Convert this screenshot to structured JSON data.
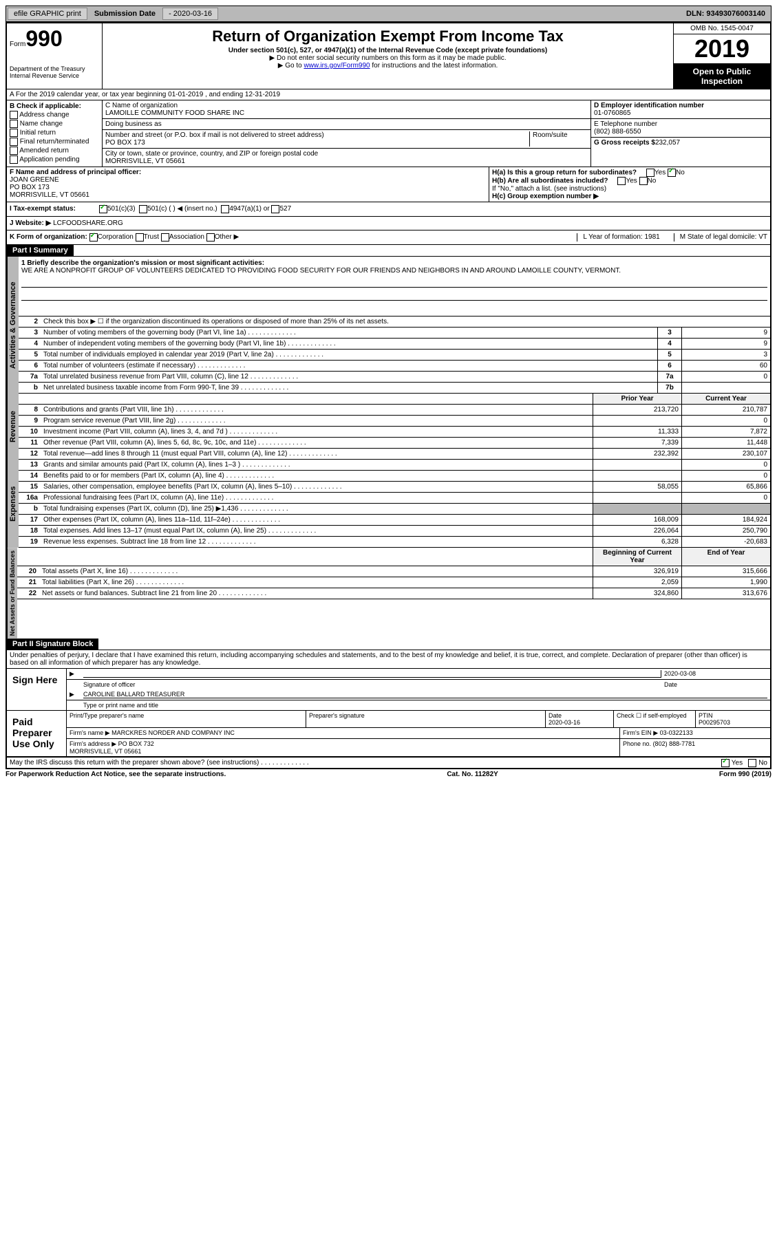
{
  "topbar": {
    "efile": "efile GRAPHIC print",
    "sub_label": "Submission Date",
    "sub_date": "- 2020-03-16",
    "dln": "DLN: 93493076003140"
  },
  "header": {
    "form_prefix": "Form",
    "form_num": "990",
    "dept": "Department of the Treasury",
    "irs": "Internal Revenue Service",
    "title": "Return of Organization Exempt From Income Tax",
    "subtitle": "Under section 501(c), 527, or 4947(a)(1) of the Internal Revenue Code (except private foundations)",
    "note1": "▶ Do not enter social security numbers on this form as it may be made public.",
    "note2_pre": "▶ Go to ",
    "note2_link": "www.irs.gov/Form990",
    "note2_post": " for instructions and the latest information.",
    "omb": "OMB No. 1545-0047",
    "year": "2019",
    "open": "Open to Public Inspection"
  },
  "row_a": "A For the 2019 calendar year, or tax year beginning 01-01-2019   , and ending 12-31-2019",
  "col_b": {
    "title": "B Check if applicable:",
    "i1": "Address change",
    "i2": "Name change",
    "i3": "Initial return",
    "i4": "Final return/terminated",
    "i5": "Amended return",
    "i6": "Application pending"
  },
  "col_c": {
    "name_label": "C Name of organization",
    "name": "LAMOILLE COMMUNITY FOOD SHARE INC",
    "dba": "Doing business as",
    "addr_label": "Number and street (or P.O. box if mail is not delivered to street address)",
    "addr": "PO BOX 173",
    "room_label": "Room/suite",
    "city_label": "City or town, state or province, country, and ZIP or foreign postal code",
    "city": "MORRISVILLE, VT  05661"
  },
  "col_d": {
    "ein_label": "D Employer identification number",
    "ein": "01-0760865",
    "phone_label": "E Telephone number",
    "phone": "(802) 888-6550",
    "gross_label": "G Gross receipts $",
    "gross": "232,057"
  },
  "row_f": {
    "label": "F  Name and address of principal officer:",
    "name": "JOAN GREENE",
    "addr1": "PO BOX 173",
    "addr2": "MORRISVILLE, VT  05661",
    "ha": "H(a)  Is this a group return for subordinates?",
    "hb": "H(b)  Are all subordinates included?",
    "hb_note": "If \"No,\" attach a list. (see instructions)",
    "hc": "H(c)  Group exemption number ▶",
    "yes": "Yes",
    "no": "No"
  },
  "row_i": {
    "label": "I  Tax-exempt status:",
    "o1": "501(c)(3)",
    "o2": "501(c) (  ) ◀ (insert no.)",
    "o3": "4947(a)(1) or",
    "o4": "527"
  },
  "row_j": {
    "label": "J  Website: ▶",
    "val": "LCFOODSHARE.ORG"
  },
  "row_k": {
    "label": "K Form of organization:",
    "o1": "Corporation",
    "o2": "Trust",
    "o3": "Association",
    "o4": "Other ▶",
    "l": "L Year of formation: 1981",
    "m": "M State of legal domicile: VT"
  },
  "part1": {
    "header": "Part I     Summary",
    "l1_label": "1  Briefly describe the organization's mission or most significant activities:",
    "l1_text": "WE ARE A NONPROFIT GROUP OF VOLUNTEERS DEDICATED TO PROVIDING FOOD SECURITY FOR OUR FRIENDS AND NEIGHBORS IN AND AROUND LAMOILLE COUNTY, VERMONT.",
    "l2": "Check this box ▶ ☐  if the organization discontinued its operations or disposed of more than 25% of its net assets.",
    "prior_hdr": "Prior Year",
    "curr_hdr": "Current Year",
    "begin_hdr": "Beginning of Current Year",
    "end_hdr": "End of Year",
    "lines_gov": [
      {
        "n": "3",
        "d": "Number of voting members of the governing body (Part VI, line 1a)",
        "b": "3",
        "v": "9"
      },
      {
        "n": "4",
        "d": "Number of independent voting members of the governing body (Part VI, line 1b)",
        "b": "4",
        "v": "9"
      },
      {
        "n": "5",
        "d": "Total number of individuals employed in calendar year 2019 (Part V, line 2a)",
        "b": "5",
        "v": "3"
      },
      {
        "n": "6",
        "d": "Total number of volunteers (estimate if necessary)",
        "b": "6",
        "v": "60"
      },
      {
        "n": "7a",
        "d": "Total unrelated business revenue from Part VIII, column (C), line 12",
        "b": "7a",
        "v": "0"
      },
      {
        "n": "b",
        "d": "Net unrelated business taxable income from Form 990-T, line 39",
        "b": "7b",
        "v": ""
      }
    ],
    "lines_rev": [
      {
        "n": "8",
        "d": "Contributions and grants (Part VIII, line 1h)",
        "p": "213,720",
        "c": "210,787"
      },
      {
        "n": "9",
        "d": "Program service revenue (Part VIII, line 2g)",
        "p": "",
        "c": "0"
      },
      {
        "n": "10",
        "d": "Investment income (Part VIII, column (A), lines 3, 4, and 7d )",
        "p": "11,333",
        "c": "7,872"
      },
      {
        "n": "11",
        "d": "Other revenue (Part VIII, column (A), lines 5, 6d, 8c, 9c, 10c, and 11e)",
        "p": "7,339",
        "c": "11,448"
      },
      {
        "n": "12",
        "d": "Total revenue—add lines 8 through 11 (must equal Part VIII, column (A), line 12)",
        "p": "232,392",
        "c": "230,107"
      }
    ],
    "lines_exp": [
      {
        "n": "13",
        "d": "Grants and similar amounts paid (Part IX, column (A), lines 1–3 )",
        "p": "",
        "c": "0"
      },
      {
        "n": "14",
        "d": "Benefits paid to or for members (Part IX, column (A), line 4)",
        "p": "",
        "c": "0"
      },
      {
        "n": "15",
        "d": "Salaries, other compensation, employee benefits (Part IX, column (A), lines 5–10)",
        "p": "58,055",
        "c": "65,866"
      },
      {
        "n": "16a",
        "d": "Professional fundraising fees (Part IX, column (A), line 11e)",
        "p": "",
        "c": "0"
      },
      {
        "n": "b",
        "d": "Total fundraising expenses (Part IX, column (D), line 25) ▶1,436",
        "p": "shaded",
        "c": "shaded"
      },
      {
        "n": "17",
        "d": "Other expenses (Part IX, column (A), lines 11a–11d, 11f–24e)",
        "p": "168,009",
        "c": "184,924"
      },
      {
        "n": "18",
        "d": "Total expenses. Add lines 13–17 (must equal Part IX, column (A), line 25)",
        "p": "226,064",
        "c": "250,790"
      },
      {
        "n": "19",
        "d": "Revenue less expenses. Subtract line 18 from line 12",
        "p": "6,328",
        "c": "-20,683"
      }
    ],
    "lines_net": [
      {
        "n": "20",
        "d": "Total assets (Part X, line 16)",
        "p": "326,919",
        "c": "315,666"
      },
      {
        "n": "21",
        "d": "Total liabilities (Part X, line 26)",
        "p": "2,059",
        "c": "1,990"
      },
      {
        "n": "22",
        "d": "Net assets or fund balances. Subtract line 21 from line 20",
        "p": "324,860",
        "c": "313,676"
      }
    ],
    "vert_gov": "Activities & Governance",
    "vert_rev": "Revenue",
    "vert_exp": "Expenses",
    "vert_net": "Net Assets or Fund Balances"
  },
  "part2": {
    "header": "Part II     Signature Block",
    "decl": "Under penalties of perjury, I declare that I have examined this return, including accompanying schedules and statements, and to the best of my knowledge and belief, it is true, correct, and complete. Declaration of preparer (other than officer) is based on all information of which preparer has any knowledge.",
    "sign_here": "Sign Here",
    "sig_officer": "Signature of officer",
    "sig_date": "2020-03-08",
    "date_lbl": "Date",
    "officer_name": "CAROLINE BALLARD TREASURER",
    "type_name": "Type or print name and title",
    "paid": "Paid Preparer Use Only",
    "prep_name_lbl": "Print/Type preparer's name",
    "prep_sig_lbl": "Preparer's signature",
    "prep_date": "2020-03-16",
    "check_self": "Check ☐ if self-employed",
    "ptin_lbl": "PTIN",
    "ptin": "P00295703",
    "firm_name_lbl": "Firm's name   ▶",
    "firm_name": "MARCKRES NORDER AND COMPANY INC",
    "firm_ein_lbl": "Firm's EIN ▶",
    "firm_ein": "03-0322133",
    "firm_addr_lbl": "Firm's address ▶",
    "firm_addr": "PO BOX 732",
    "firm_city": "MORRISVILLE, VT  05661",
    "phone_lbl": "Phone no.",
    "phone": "(802) 888-7781",
    "discuss": "May the IRS discuss this return with the preparer shown above? (see instructions)",
    "yes": "Yes",
    "no": "No"
  },
  "footer": {
    "left": "For Paperwork Reduction Act Notice, see the separate instructions.",
    "center": "Cat. No. 11282Y",
    "right": "Form 990 (2019)"
  }
}
